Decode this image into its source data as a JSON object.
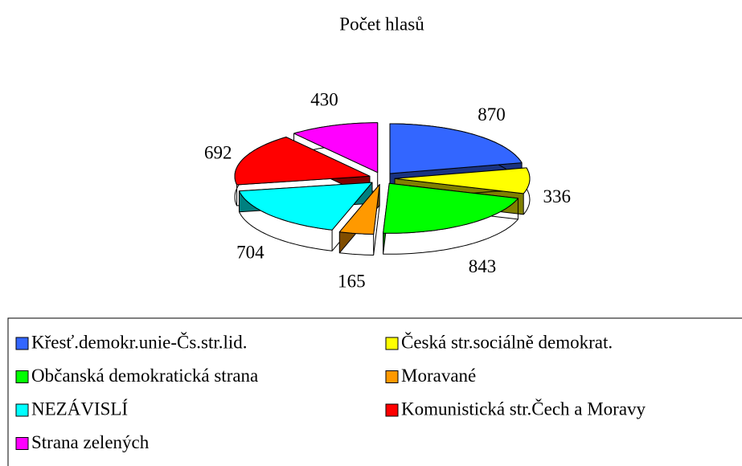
{
  "chart_data": {
    "type": "pie3d",
    "title": "Počet hlasů",
    "categories": [
      "Křesť.demokr.unie-Čs.str.lid.",
      "Česká str.sociálně demokrat.",
      "Občanská demokratická strana",
      "Moravané",
      "NEZÁVISLÍ",
      "Komunistická str.Čech a Moravy",
      "Strana zelených"
    ],
    "values": [
      870,
      336,
      843,
      165,
      704,
      692,
      430
    ],
    "colors": [
      "#3366ff",
      "#ffff00",
      "#00ff00",
      "#ff9900",
      "#00ffff",
      "#ff0000",
      "#ff00ff"
    ],
    "legend": "bottom"
  }
}
